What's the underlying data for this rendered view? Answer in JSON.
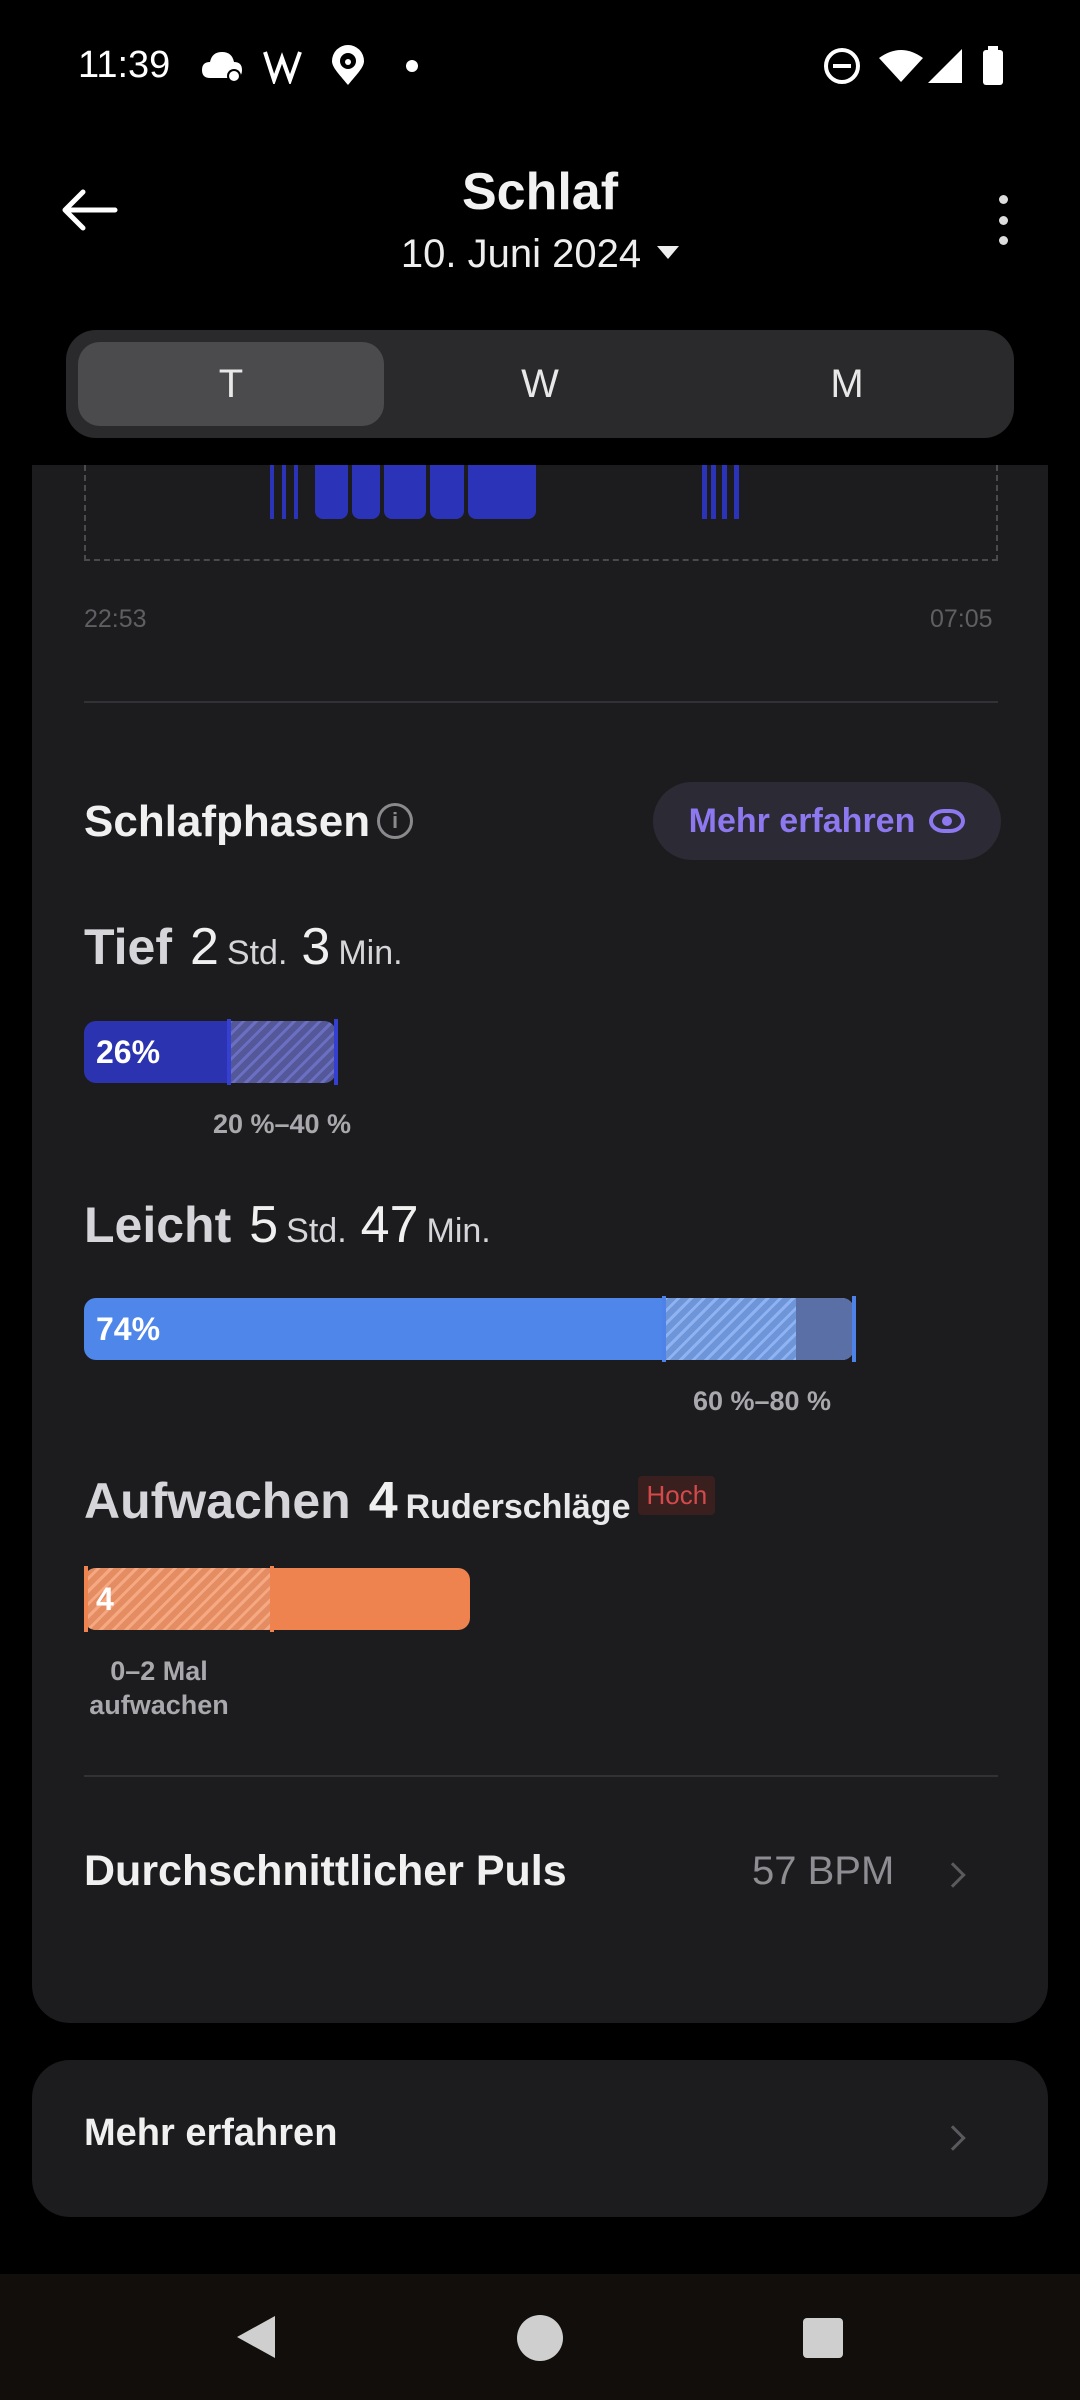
{
  "status_bar": {
    "time": "11:39",
    "icons_left": [
      "cloud-sync-icon",
      "w-app-icon",
      "location-paw-icon",
      "dot-icon"
    ],
    "icons_right": [
      "do-not-disturb-icon",
      "wifi-icon",
      "signal-icon",
      "battery-icon"
    ]
  },
  "header": {
    "title": "Schlaf",
    "date": "10. Juni 2024"
  },
  "tabs": [
    {
      "label": "T",
      "active": true
    },
    {
      "label": "W",
      "active": false
    },
    {
      "label": "M",
      "active": false
    }
  ],
  "sleep_chart": {
    "start_time": "22:53",
    "end_time": "07:05",
    "bar_color": "#2b34b8"
  },
  "phases_section": {
    "title": "Schlafphasen",
    "learn_more_label": "Mehr erfahren",
    "accent_color": "#8d78f0"
  },
  "phases": {
    "deep": {
      "name": "Tief",
      "hours": "2",
      "hours_unit": "Std.",
      "minutes": "3",
      "minutes_unit": "Min.",
      "percent_label": "26%",
      "percent": 26,
      "range_label": "20 %–40 %",
      "color": "#2c33b0"
    },
    "light": {
      "name": "Leicht",
      "hours": "5",
      "hours_unit": "Std.",
      "minutes": "47",
      "minutes_unit": "Min.",
      "percent_label": "74%",
      "percent": 74,
      "range_label": "60 %–80 %",
      "color": "#4f86ea"
    },
    "awake": {
      "name": "Aufwachen",
      "count": "4",
      "count_unit": "Ruderschläge",
      "badge": "Hoch",
      "value_label": "4",
      "range_label_1": "0–2 Mal",
      "range_label_2": "aufwachen",
      "color": "#ef834f"
    }
  },
  "avg_pulse": {
    "label": "Durchschnittlicher Puls",
    "value": "57 BPM"
  },
  "more_card": {
    "label": "Mehr erfahren"
  },
  "nav": [
    "back-nav-icon",
    "home-nav-icon",
    "recents-nav-icon"
  ]
}
